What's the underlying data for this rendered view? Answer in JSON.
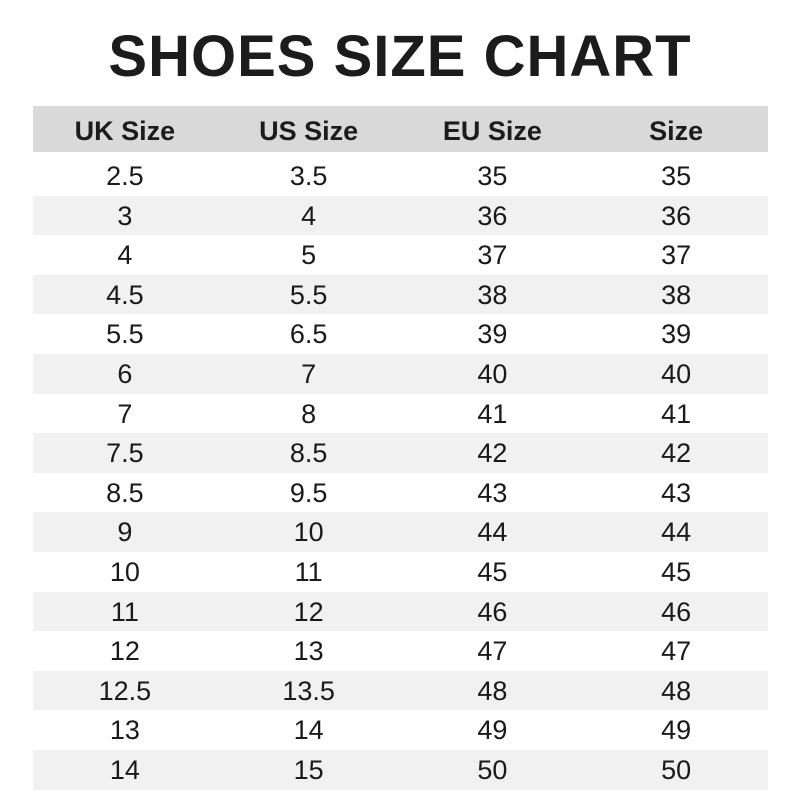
{
  "title": "SHOES SIZE CHART",
  "columns": [
    "UK Size",
    "US Size",
    "EU Size",
    "Size"
  ],
  "rows": [
    [
      "2.5",
      "3.5",
      "35",
      "35"
    ],
    [
      "3",
      "4",
      "36",
      "36"
    ],
    [
      "4",
      "5",
      "37",
      "37"
    ],
    [
      "4.5",
      "5.5",
      "38",
      "38"
    ],
    [
      "5.5",
      "6.5",
      "39",
      "39"
    ],
    [
      "6",
      "7",
      "40",
      "40"
    ],
    [
      "7",
      "8",
      "41",
      "41"
    ],
    [
      "7.5",
      "8.5",
      "42",
      "42"
    ],
    [
      "8.5",
      "9.5",
      "43",
      "43"
    ],
    [
      "9",
      "10",
      "44",
      "44"
    ],
    [
      "10",
      "11",
      "45",
      "45"
    ],
    [
      "11",
      "12",
      "46",
      "46"
    ],
    [
      "12",
      "13",
      "47",
      "47"
    ],
    [
      "12.5",
      "13.5",
      "48",
      "48"
    ],
    [
      "13",
      "14",
      "49",
      "49"
    ],
    [
      "14",
      "15",
      "50",
      "50"
    ]
  ],
  "colors": {
    "header_bg": "#d9d9d9",
    "stripe_bg": "#f1f1f1",
    "text": "#1a1a1a"
  }
}
